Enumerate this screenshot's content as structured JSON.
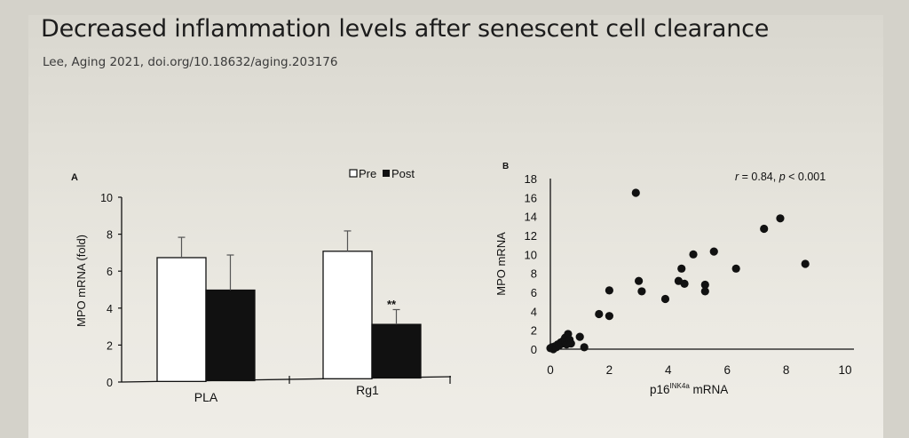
{
  "slide": {
    "title": "Decreased inflammation levels after senescent cell clearance",
    "citation": "Lee, Aging 2021, doi.org/10.18632/aging.203176"
  },
  "colors": {
    "ink": "#111111",
    "pre": "#ffffff",
    "post": "#111111"
  },
  "chart_data": [
    {
      "type": "bar",
      "panel_label": "A",
      "title": "",
      "xlabel": "",
      "ylabel": "MPO mRNA (fold)",
      "ylim": [
        0,
        10
      ],
      "yticks": [
        "0",
        "2",
        "4",
        "6",
        "8",
        "10"
      ],
      "categories": [
        "PLA",
        "Rg1"
      ],
      "legend": {
        "placement": "top-right",
        "entries": [
          "Pre",
          "Post"
        ]
      },
      "series": [
        {
          "name": "Pre",
          "values": [
            6.7,
            6.9
          ],
          "errors": [
            1.1,
            1.1
          ]
        },
        {
          "name": "Post",
          "values": [
            4.9,
            2.9
          ],
          "errors": [
            1.9,
            0.8
          ]
        }
      ],
      "annotations": [
        {
          "category": "Rg1",
          "series": "Post",
          "text": "**"
        }
      ]
    },
    {
      "type": "scatter",
      "panel_label": "B",
      "title": "",
      "xlabel_base": "p16",
      "xlabel_sup": "INK4a",
      "xlabel_tail": " mRNA",
      "ylabel": "MPO mRNA",
      "xlim": [
        0,
        10
      ],
      "ylim": [
        0,
        18
      ],
      "xticks": [
        "0",
        "2",
        "4",
        "6",
        "8",
        "10"
      ],
      "yticks": [
        "0",
        "2",
        "4",
        "6",
        "8",
        "10",
        "12",
        "14",
        "16",
        "18"
      ],
      "stat_r": "r",
      "stat_r_val": " = 0.84, ",
      "stat_p": "p",
      "stat_p_val": " < 0.001",
      "points": [
        [
          0.0,
          0.1
        ],
        [
          0.05,
          0.2
        ],
        [
          0.1,
          0.0
        ],
        [
          0.15,
          0.3
        ],
        [
          0.2,
          0.2
        ],
        [
          0.25,
          0.5
        ],
        [
          0.3,
          0.4
        ],
        [
          0.35,
          0.7
        ],
        [
          0.4,
          0.6
        ],
        [
          0.45,
          0.9
        ],
        [
          0.5,
          1.2
        ],
        [
          0.5,
          0.8
        ],
        [
          0.55,
          0.5
        ],
        [
          0.6,
          1.6
        ],
        [
          0.65,
          1.0
        ],
        [
          0.7,
          0.6
        ],
        [
          1.0,
          1.3
        ],
        [
          1.15,
          0.2
        ],
        [
          1.65,
          3.7
        ],
        [
          2.0,
          3.5
        ],
        [
          2.0,
          6.2
        ],
        [
          2.9,
          16.5
        ],
        [
          3.0,
          7.2
        ],
        [
          3.1,
          6.1
        ],
        [
          3.9,
          5.3
        ],
        [
          4.35,
          7.2
        ],
        [
          4.45,
          8.5
        ],
        [
          4.55,
          6.9
        ],
        [
          4.85,
          10.0
        ],
        [
          5.25,
          6.8
        ],
        [
          5.25,
          6.1
        ],
        [
          5.55,
          10.3
        ],
        [
          6.3,
          8.5
        ],
        [
          7.25,
          12.7
        ],
        [
          7.8,
          13.8
        ],
        [
          8.65,
          9.0
        ]
      ]
    }
  ]
}
